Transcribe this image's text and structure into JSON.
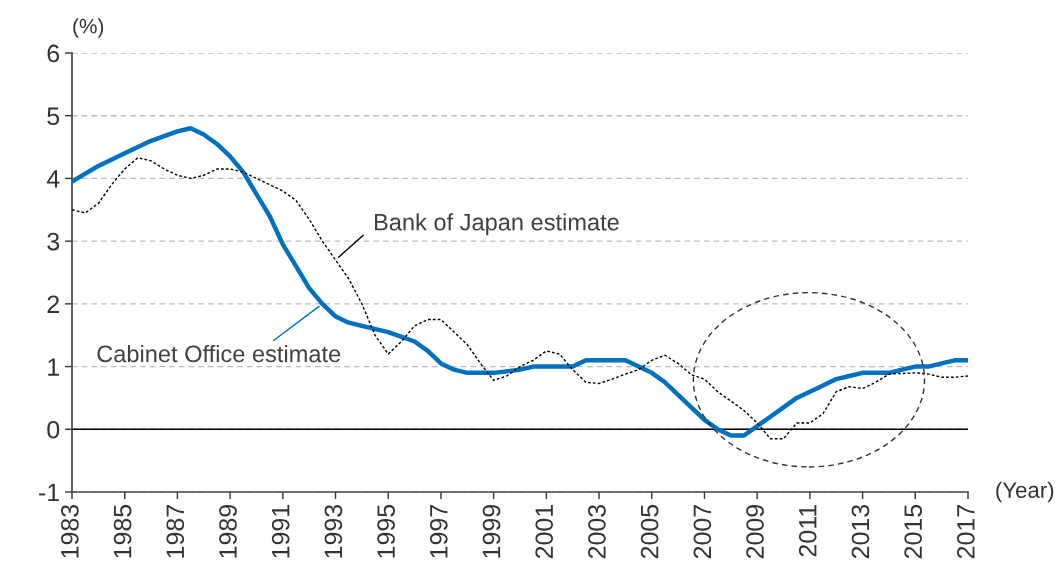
{
  "chart_data": {
    "type": "line",
    "ylabel": "(%)",
    "xlabel": "(Year)",
    "xlim": [
      1983,
      2017
    ],
    "xticks": [
      1983,
      1985,
      1987,
      1989,
      1991,
      1993,
      1995,
      1997,
      1999,
      2001,
      2003,
      2005,
      2007,
      2009,
      2011,
      2013,
      2015,
      2017
    ],
    "ylim": [
      -1,
      6
    ],
    "yticks": [
      -1,
      0,
      1,
      2,
      3,
      4,
      5,
      6
    ],
    "grid": "y",
    "series": [
      {
        "name": "Cabinet Office estimate",
        "color": "#0070c0",
        "line_style": "solid",
        "x": [
          1983,
          1984,
          1985,
          1986,
          1987,
          1987.5,
          1988,
          1988.5,
          1989,
          1989.5,
          1990,
          1990.5,
          1991,
          1991.5,
          1992,
          1992.5,
          1993,
          1993.5,
          1994,
          1995,
          1996,
          1996.5,
          1997,
          1997.5,
          1998,
          1999,
          2000,
          2000.5,
          2001,
          2002,
          2002.5,
          2004,
          2005,
          2005.5,
          2006,
          2006.5,
          2007,
          2007.5,
          2008,
          2008.5,
          2009,
          2009.5,
          2010,
          2010.5,
          2011,
          2011.5,
          2012,
          2012.5,
          2013,
          2014,
          2014.5,
          2015,
          2015.5,
          2016,
          2016.5,
          2017
        ],
        "values": [
          3.95,
          4.2,
          4.4,
          4.6,
          4.75,
          4.8,
          4.7,
          4.55,
          4.35,
          4.1,
          3.75,
          3.4,
          2.95,
          2.6,
          2.25,
          2.0,
          1.8,
          1.7,
          1.65,
          1.55,
          1.4,
          1.25,
          1.05,
          0.95,
          0.9,
          0.9,
          0.95,
          1.0,
          1.0,
          1.0,
          1.1,
          1.1,
          0.9,
          0.75,
          0.55,
          0.35,
          0.15,
          0.0,
          -0.1,
          -0.1,
          0.05,
          0.2,
          0.35,
          0.5,
          0.6,
          0.7,
          0.8,
          0.85,
          0.9,
          0.9,
          0.95,
          1.0,
          1.0,
          1.05,
          1.1,
          1.1
        ]
      },
      {
        "name": "Bank of Japan estimate",
        "color": "#000000",
        "line_style": "dotted",
        "x": [
          1983,
          1983.5,
          1984,
          1984.5,
          1985,
          1985.5,
          1986,
          1986.5,
          1987,
          1987.5,
          1988,
          1988.5,
          1989,
          1989.5,
          1990,
          1990.5,
          1991,
          1991.5,
          1992,
          1992.5,
          1993,
          1993.5,
          1994,
          1994.5,
          1995,
          1995.5,
          1996,
          1996.5,
          1997,
          1997.5,
          1998,
          1998.5,
          1999,
          1999.5,
          2000,
          2000.5,
          2001,
          2001.5,
          2002,
          2002.5,
          2003,
          2003.5,
          2004,
          2004.5,
          2005,
          2005.5,
          2006,
          2006.5,
          2007,
          2007.5,
          2008,
          2008.5,
          2009,
          2009.5,
          2010,
          2010.5,
          2011,
          2011.5,
          2012,
          2012.5,
          2013,
          2013.5,
          2014,
          2015,
          2015.5,
          2016,
          2016.5,
          2017
        ],
        "values": [
          3.5,
          3.45,
          3.6,
          3.9,
          4.15,
          4.33,
          4.28,
          4.15,
          4.05,
          4.0,
          4.05,
          4.15,
          4.15,
          4.1,
          4.0,
          3.9,
          3.8,
          3.65,
          3.35,
          3.0,
          2.7,
          2.4,
          2.0,
          1.5,
          1.2,
          1.4,
          1.65,
          1.75,
          1.75,
          1.55,
          1.35,
          1.05,
          0.78,
          0.85,
          1.0,
          1.1,
          1.25,
          1.2,
          0.95,
          0.75,
          0.73,
          0.8,
          0.88,
          0.95,
          1.1,
          1.18,
          1.05,
          0.87,
          0.8,
          0.6,
          0.45,
          0.3,
          0.1,
          -0.15,
          -0.15,
          0.1,
          0.1,
          0.25,
          0.6,
          0.68,
          0.65,
          0.75,
          0.88,
          0.9,
          0.88,
          0.83,
          0.83,
          0.85
        ]
      }
    ],
    "ref_lines": [
      {
        "axis": "y",
        "value": 0,
        "color": "#000000",
        "line_style": "solid"
      }
    ]
  }
}
